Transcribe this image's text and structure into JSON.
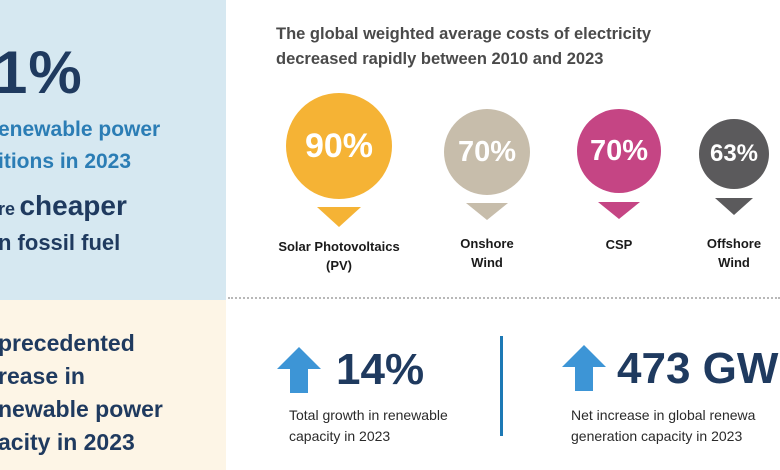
{
  "left_panel": {
    "pct_fragment": "1%",
    "renewable_line1": "enewable power",
    "renewable_line2": "itions in 2023",
    "cheaper_prefix": "re",
    "cheaper_word": "cheaper",
    "fossil_line": "n fossil fuel",
    "unprecedented_lines": [
      "precedented",
      "rease in",
      "newable power",
      "acity in 2023"
    ]
  },
  "headline": {
    "line1": "The global weighted average costs of electricity",
    "line2": "decreased rapidly between 2010 and 2023"
  },
  "cost_decreases": [
    {
      "value": "90%",
      "label_lines": [
        "Solar Photovoltaics",
        "(PV)"
      ],
      "color": "#f5b335"
    },
    {
      "value": "70%",
      "label_lines": [
        "Onshore",
        "Wind"
      ],
      "color": "#c7bdab"
    },
    {
      "value": "70%",
      "label_lines": [
        "CSP"
      ],
      "color": "#c54584"
    },
    {
      "value": "63%",
      "label_lines": [
        "Offshore",
        "Wind"
      ],
      "color": "#5b5a5c"
    }
  ],
  "stats": [
    {
      "value": "14%",
      "desc_lines": [
        "Total growth in renewable",
        "capacity in 2023"
      ]
    },
    {
      "value": "473 GW",
      "desc_lines": [
        "Net increase in global renewa",
        "generation capacity in 2023"
      ]
    }
  ],
  "colors": {
    "navy": "#1f3a5f",
    "blue_text": "#2b7db5",
    "arrow": "#3d95d6",
    "divider": "#1d79b5",
    "panel_blue": "#d6e8f1",
    "panel_cream": "#fdf5e6"
  },
  "icons": {
    "growth_arrow": "up-arrow-icon"
  }
}
